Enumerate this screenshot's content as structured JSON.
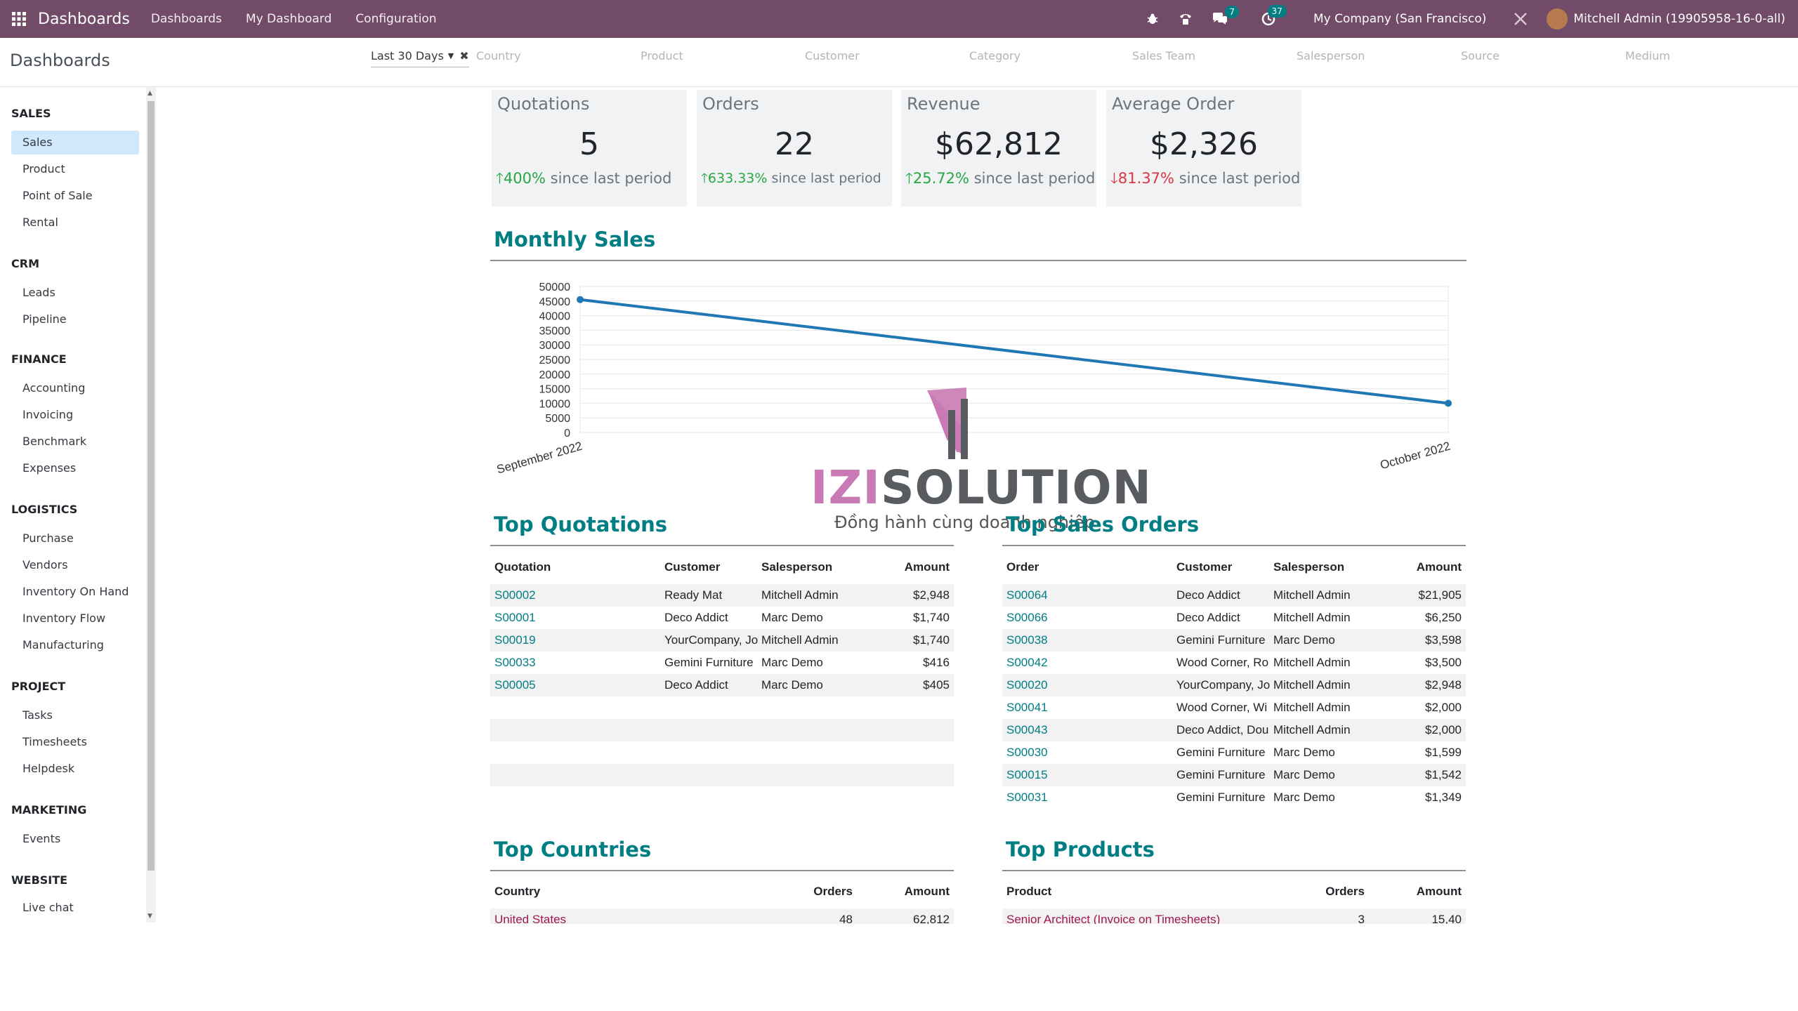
{
  "navbar": {
    "app_title": "Dashboards",
    "menus": [
      "Dashboards",
      "My Dashboard",
      "Configuration"
    ],
    "messages_count": "7",
    "activities_count": "37",
    "company": "My Company (San Francisco)",
    "user": "Mitchell Admin (19905958-16-0-all)"
  },
  "control_panel": {
    "breadcrumb": "Dashboards",
    "date_filter": "Last 30 Days",
    "filters": [
      "Country",
      "Product",
      "Customer",
      "Category",
      "Sales Team",
      "Salesperson",
      "Source",
      "Medium"
    ]
  },
  "sidebar": {
    "sections": [
      {
        "title": "SALES",
        "items": [
          "Sales",
          "Product",
          "Point of Sale",
          "Rental"
        ]
      },
      {
        "title": "CRM",
        "items": [
          "Leads",
          "Pipeline"
        ]
      },
      {
        "title": "FINANCE",
        "items": [
          "Accounting",
          "Invoicing",
          "Benchmark",
          "Expenses"
        ]
      },
      {
        "title": "LOGISTICS",
        "items": [
          "Purchase",
          "Vendors",
          "Inventory On Hand",
          "Inventory Flow",
          "Manufacturing"
        ]
      },
      {
        "title": "PROJECT",
        "items": [
          "Tasks",
          "Timesheets",
          "Helpdesk"
        ]
      },
      {
        "title": "MARKETING",
        "items": [
          "Events"
        ]
      },
      {
        "title": "WEBSITE",
        "items": [
          "Live chat"
        ]
      }
    ],
    "active_item": "Sales"
  },
  "kpis": [
    {
      "title": "Quotations",
      "value": "5",
      "trend": "400%",
      "trend_dir": "up",
      "suffix": "since last period"
    },
    {
      "title": "Orders",
      "value": "22",
      "trend": "633.33%",
      "trend_dir": "up",
      "suffix": "since last period"
    },
    {
      "title": "Revenue",
      "value": "$62,812",
      "trend": "25.72%",
      "trend_dir": "up",
      "suffix": "since last period"
    },
    {
      "title": "Average Order",
      "value": "$2,326",
      "trend": "81.37%",
      "trend_dir": "down",
      "suffix": "since last period"
    }
  ],
  "monthly_sales": {
    "title": "Monthly Sales"
  },
  "chart_data": {
    "type": "line",
    "categories": [
      "September 2022",
      "October 2022"
    ],
    "series": [
      {
        "values": [
          45500,
          10000
        ]
      }
    ],
    "yticks": [
      0,
      5000,
      10000,
      15000,
      20000,
      25000,
      30000,
      35000,
      40000,
      45000,
      50000
    ],
    "ylim": [
      0,
      50000
    ],
    "color": "#1f77b4",
    "grid": true
  },
  "top_quotations": {
    "title": "Top Quotations",
    "columns": [
      "Quotation",
      "Customer",
      "Salesperson",
      "Amount"
    ],
    "rows": [
      [
        "S00002",
        "Ready Mat",
        "Mitchell Admin",
        "$2,948"
      ],
      [
        "S00001",
        "Deco Addict",
        "Marc Demo",
        "$1,740"
      ],
      [
        "S00019",
        "YourCompany, Jo",
        "Mitchell Admin",
        "$1,740"
      ],
      [
        "S00033",
        "Gemini Furniture",
        "Marc Demo",
        "$416"
      ],
      [
        "S00005",
        "Deco Addict",
        "Marc Demo",
        "$405"
      ]
    ]
  },
  "top_sales_orders": {
    "title": "Top Sales Orders",
    "columns": [
      "Order",
      "Customer",
      "Salesperson",
      "Amount"
    ],
    "rows": [
      [
        "S00064",
        "Deco Addict",
        "Mitchell Admin",
        "$21,905"
      ],
      [
        "S00066",
        "Deco Addict",
        "Mitchell Admin",
        "$6,250"
      ],
      [
        "S00038",
        "Gemini Furniture",
        "Marc Demo",
        "$3,598"
      ],
      [
        "S00042",
        "Wood Corner, Ro",
        "Mitchell Admin",
        "$3,500"
      ],
      [
        "S00020",
        "YourCompany, Jo",
        "Mitchell Admin",
        "$2,948"
      ],
      [
        "S00041",
        "Wood Corner, Wi",
        "Mitchell Admin",
        "$2,000"
      ],
      [
        "S00043",
        "Deco Addict, Dou",
        "Mitchell Admin",
        "$2,000"
      ],
      [
        "S00030",
        "Gemini Furniture",
        "Marc Demo",
        "$1,599"
      ],
      [
        "S00015",
        "Gemini Furniture",
        "Marc Demo",
        "$1,542"
      ],
      [
        "S00031",
        "Gemini Furniture",
        "Marc Demo",
        "$1,349"
      ]
    ]
  },
  "top_countries": {
    "title": "Top Countries",
    "columns": [
      "Country",
      "Orders",
      "Amount"
    ],
    "rows": [
      [
        "United States",
        "48",
        "62,812"
      ]
    ]
  },
  "top_products": {
    "title": "Top Products",
    "columns": [
      "Product",
      "Orders",
      "Amount"
    ],
    "rows": [
      [
        "Senior Architect (Invoice on Timesheets)",
        "3",
        "15,40"
      ]
    ]
  },
  "watermark": {
    "brand_a": "IZI",
    "brand_b": "SOLUTION",
    "tagline": "Đồng hành cùng doanh nghiệp"
  }
}
